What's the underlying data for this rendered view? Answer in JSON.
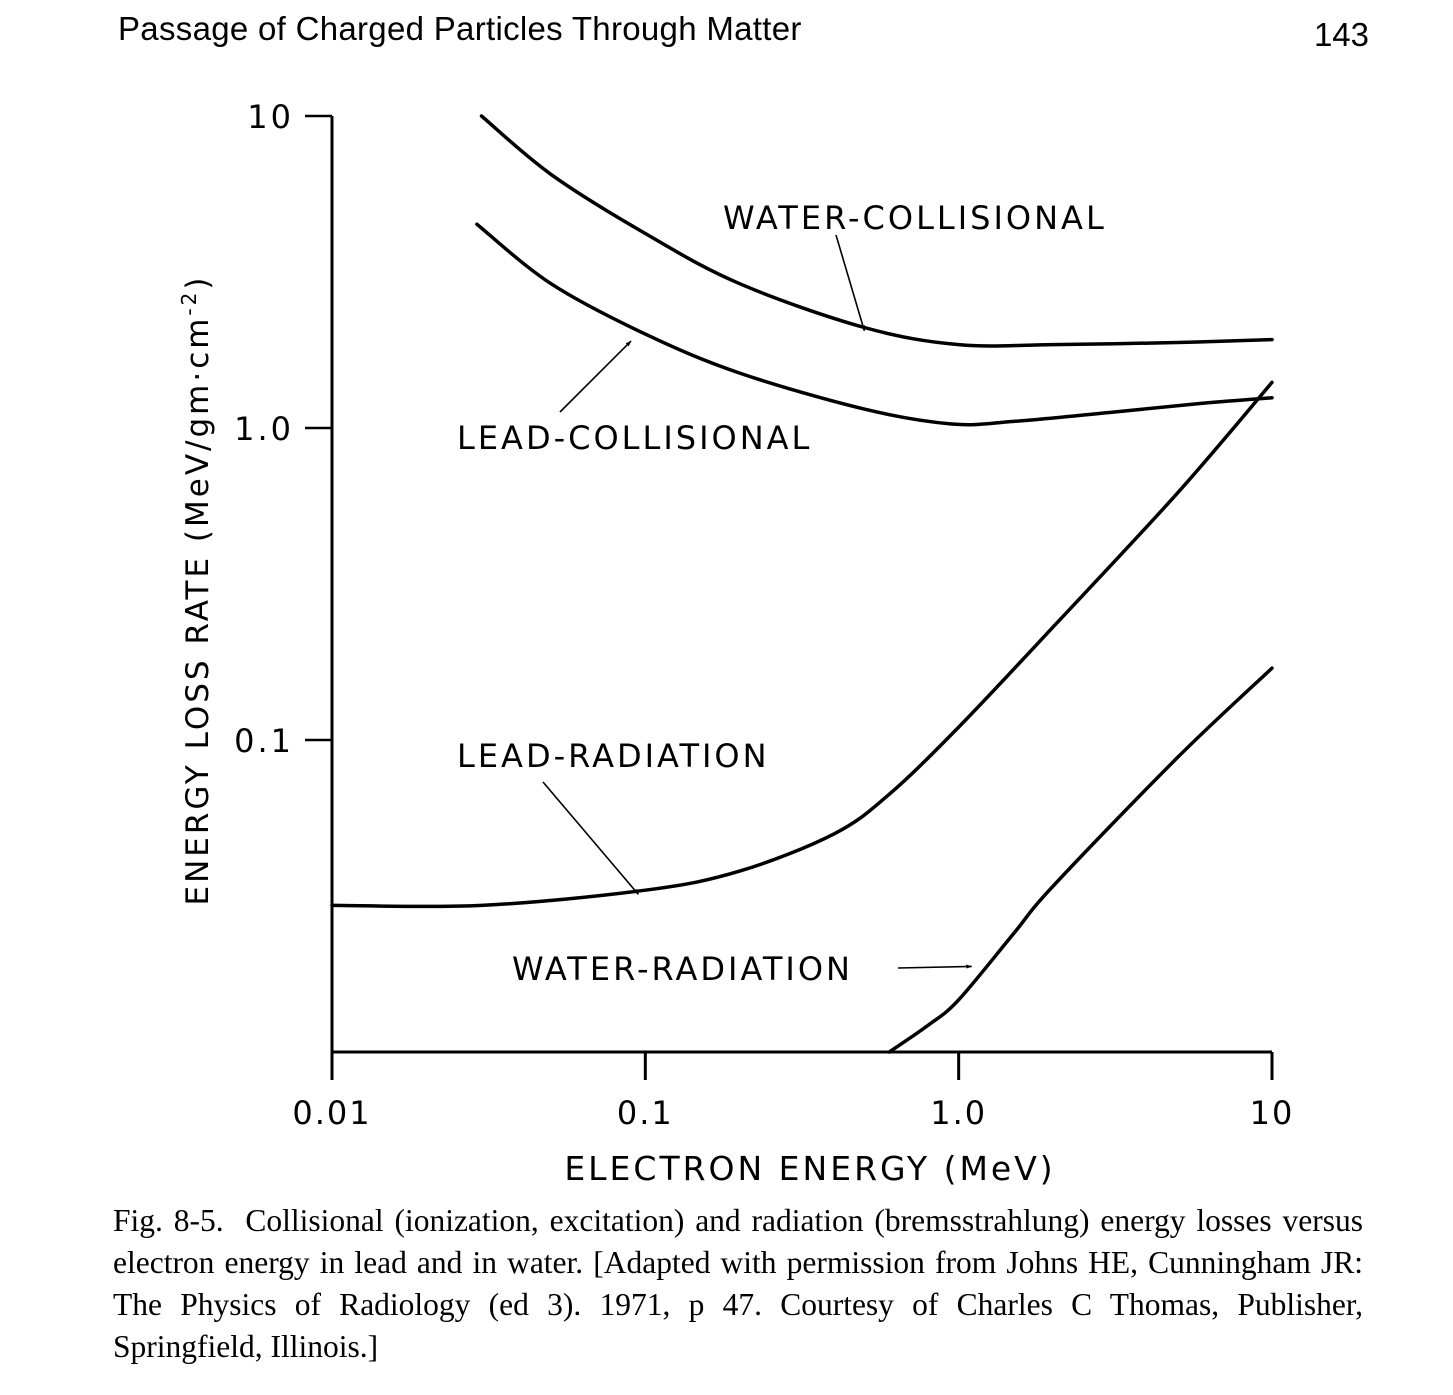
{
  "header": {
    "title": "Passage of Charged Particles Through Matter",
    "page_number": "143"
  },
  "chart_data": {
    "type": "line",
    "title": "",
    "xlabel": "ELECTRON ENERGY (MeV)",
    "ylabel": "ENERGY LOSS RATE (MeV/gm·cm",
    "ylabel_sup": "-2",
    "ylabel_close": ")",
    "xscale": "log",
    "yscale": "log",
    "xlim": [
      0.01,
      10
    ],
    "ylim": [
      0.01,
      10
    ],
    "grid": false,
    "x_ticks": [
      {
        "value": 0.01,
        "label": "0.01"
      },
      {
        "value": 0.1,
        "label": "0.1"
      },
      {
        "value": 1,
        "label": "1.0"
      },
      {
        "value": 10,
        "label": "10"
      }
    ],
    "y_ticks": [
      {
        "value": 0.1,
        "label": "0.1"
      },
      {
        "value": 1,
        "label": "1.0"
      },
      {
        "value": 10,
        "label": "10"
      }
    ],
    "series": [
      {
        "name": "WATER-COLLISIONAL",
        "x": [
          0.03,
          0.05,
          0.1,
          0.2,
          0.5,
          1.0,
          2.0,
          5.0,
          10.0
        ],
        "y": [
          10.0,
          6.5,
          4.2,
          2.9,
          2.1,
          1.85,
          1.85,
          1.88,
          1.92
        ]
      },
      {
        "name": "LEAD-COLLISIONAL",
        "x": [
          0.029,
          0.05,
          0.1,
          0.2,
          0.5,
          0.95,
          1.5,
          3.0,
          6.0,
          10.0
        ],
        "y": [
          4.5,
          2.9,
          2.0,
          1.5,
          1.15,
          1.03,
          1.05,
          1.12,
          1.2,
          1.25
        ]
      },
      {
        "name": "LEAD-RADIATION",
        "x": [
          0.01,
          0.03,
          0.1,
          0.2,
          0.4,
          0.6,
          1.0,
          2.0,
          5.0,
          10.0
        ],
        "y": [
          0.0295,
          0.0295,
          0.033,
          0.038,
          0.05,
          0.067,
          0.11,
          0.23,
          0.62,
          1.4
        ]
      },
      {
        "name": "WATER-RADIATION",
        "x": [
          0.6,
          0.8,
          1.0,
          1.5,
          2.0,
          5.0,
          10.0
        ],
        "y": [
          0.01,
          0.0122,
          0.0147,
          0.024,
          0.034,
          0.088,
          0.17
        ]
      }
    ],
    "annotations": [
      {
        "text": "WATER-COLLISIONAL",
        "arrow_to": {
          "x": 0.5,
          "y": 2.05
        }
      },
      {
        "text": "LEAD-COLLISIONAL",
        "arrow_to": {
          "x": 0.09,
          "y": 1.9
        }
      },
      {
        "text": "LEAD-RADIATION",
        "arrow_to": {
          "x": 0.095,
          "y": 0.032
        }
      },
      {
        "text": "WATER-RADIATION",
        "arrow_to": {
          "x": 1.1,
          "y": 0.0188
        }
      }
    ],
    "colors": {
      "line": "#000000"
    }
  },
  "caption": {
    "label": "Fig. 8-5.",
    "text": "Collisional (ionization, excitation) and radiation (bremsstrahlung) energy losses versus electron energy in lead and in water. [Adapted with permission from Johns HE, Cunningham JR: The Physics of Radiology (ed 3). 1971, p 47. Courtesy of Charles C Thomas, Publisher, Springfield, Illinois.]"
  }
}
